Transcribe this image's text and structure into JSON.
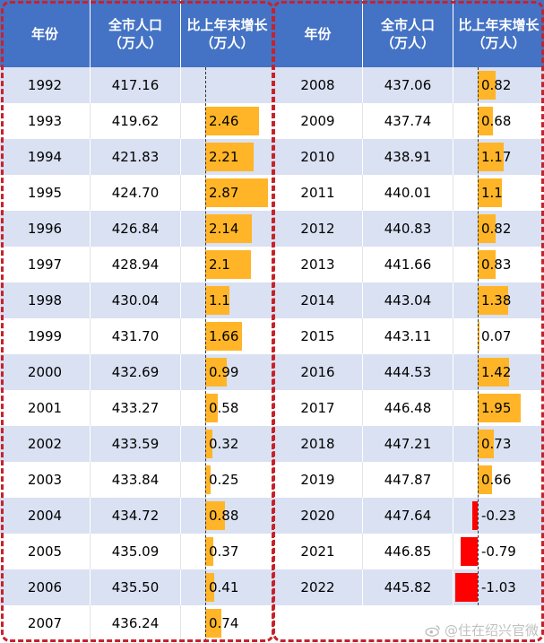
{
  "headers": {
    "year": "年份",
    "pop_line1": "全市人口",
    "pop_line2": "（万人）",
    "growth_line1": "比上年末增长",
    "growth_line2": "（万人）"
  },
  "left_rows": [
    {
      "year": "1992",
      "pop": "417.16",
      "growth": ""
    },
    {
      "year": "1993",
      "pop": "419.62",
      "growth": "2.46"
    },
    {
      "year": "1994",
      "pop": "421.83",
      "growth": "2.21"
    },
    {
      "year": "1995",
      "pop": "424.70",
      "growth": "2.87"
    },
    {
      "year": "1996",
      "pop": "426.84",
      "growth": "2.14"
    },
    {
      "year": "1997",
      "pop": "428.94",
      "growth": "2.1"
    },
    {
      "year": "1998",
      "pop": "430.04",
      "growth": "1.1"
    },
    {
      "year": "1999",
      "pop": "431.70",
      "growth": "1.66"
    },
    {
      "year": "2000",
      "pop": "432.69",
      "growth": "0.99"
    },
    {
      "year": "2001",
      "pop": "433.27",
      "growth": "0.58"
    },
    {
      "year": "2002",
      "pop": "433.59",
      "growth": "0.32"
    },
    {
      "year": "2003",
      "pop": "433.84",
      "growth": "0.25"
    },
    {
      "year": "2004",
      "pop": "434.72",
      "growth": "0.88"
    },
    {
      "year": "2005",
      "pop": "435.09",
      "growth": "0.37"
    },
    {
      "year": "2006",
      "pop": "435.50",
      "growth": "0.41"
    },
    {
      "year": "2007",
      "pop": "436.24",
      "growth": "0.74"
    }
  ],
  "right_rows": [
    {
      "year": "2008",
      "pop": "437.06",
      "growth": "0.82"
    },
    {
      "year": "2009",
      "pop": "437.74",
      "growth": "0.68"
    },
    {
      "year": "2010",
      "pop": "438.91",
      "growth": "1.17"
    },
    {
      "year": "2011",
      "pop": "440.01",
      "growth": "1.1"
    },
    {
      "year": "2012",
      "pop": "440.83",
      "growth": "0.82"
    },
    {
      "year": "2013",
      "pop": "441.66",
      "growth": "0.83"
    },
    {
      "year": "2014",
      "pop": "443.04",
      "growth": "1.38"
    },
    {
      "year": "2015",
      "pop": "443.11",
      "growth": "0.07"
    },
    {
      "year": "2016",
      "pop": "444.53",
      "growth": "1.42"
    },
    {
      "year": "2017",
      "pop": "446.48",
      "growth": "1.95"
    },
    {
      "year": "2018",
      "pop": "447.21",
      "growth": "0.73"
    },
    {
      "year": "2019",
      "pop": "447.87",
      "growth": "0.66"
    },
    {
      "year": "2020",
      "pop": "447.64",
      "growth": "-0.23"
    },
    {
      "year": "2021",
      "pop": "446.85",
      "growth": "-0.79"
    },
    {
      "year": "2022",
      "pop": "445.82",
      "growth": "-1.03"
    }
  ],
  "watermark": "@住在绍兴官微",
  "colors": {
    "header": "#4472c4",
    "row_alt": "#d9e1f2",
    "bar_positive": "#ffb527",
    "bar_negative": "#ff0000",
    "frame": "#c7222a"
  }
}
